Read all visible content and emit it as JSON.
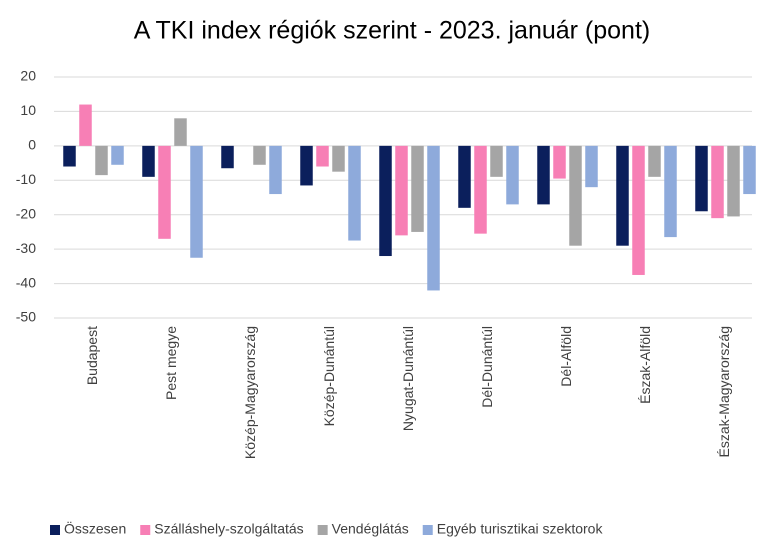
{
  "chart_data": {
    "type": "bar",
    "title": "A TKI index régiók szerint - 2023. január (pont)",
    "categories": [
      "Budapest",
      "Pest megye",
      "Közép-Magyarország",
      "Közép-Dunántúl",
      "Nyugat-Dunántúl",
      "Dél-Dunántúl",
      "Dél-Alföld",
      "Észak-Alföld",
      "Észak-Magyarország"
    ],
    "series": [
      {
        "name": "Összesen",
        "color": "#0b1f5c",
        "values": [
          -6,
          -9,
          -6.5,
          -11.5,
          -32,
          -18,
          -17,
          -29,
          -19
        ]
      },
      {
        "name": "Szálláshely-szolgáltatás",
        "color": "#f77fb5",
        "values": [
          12,
          -27,
          0,
          -6,
          -26,
          -25.5,
          -9.5,
          -37.5,
          -21
        ]
      },
      {
        "name": "Vendéglátás",
        "color": "#a5a5a5",
        "values": [
          -8.5,
          8,
          -5.5,
          -7.5,
          -25,
          -9,
          -29,
          -9,
          -20.5
        ]
      },
      {
        "name": "Egyéb turisztikai szektorok",
        "color": "#8eaadb",
        "values": [
          -5.5,
          -32.5,
          -14,
          -27.5,
          -42,
          -17,
          -12,
          -26.5,
          -14
        ]
      }
    ],
    "ylim": [
      -50,
      20
    ],
    "yticks": [
      -50,
      -40,
      -30,
      -20,
      -10,
      0,
      10,
      20
    ],
    "grid": true,
    "legend": "bottom"
  }
}
